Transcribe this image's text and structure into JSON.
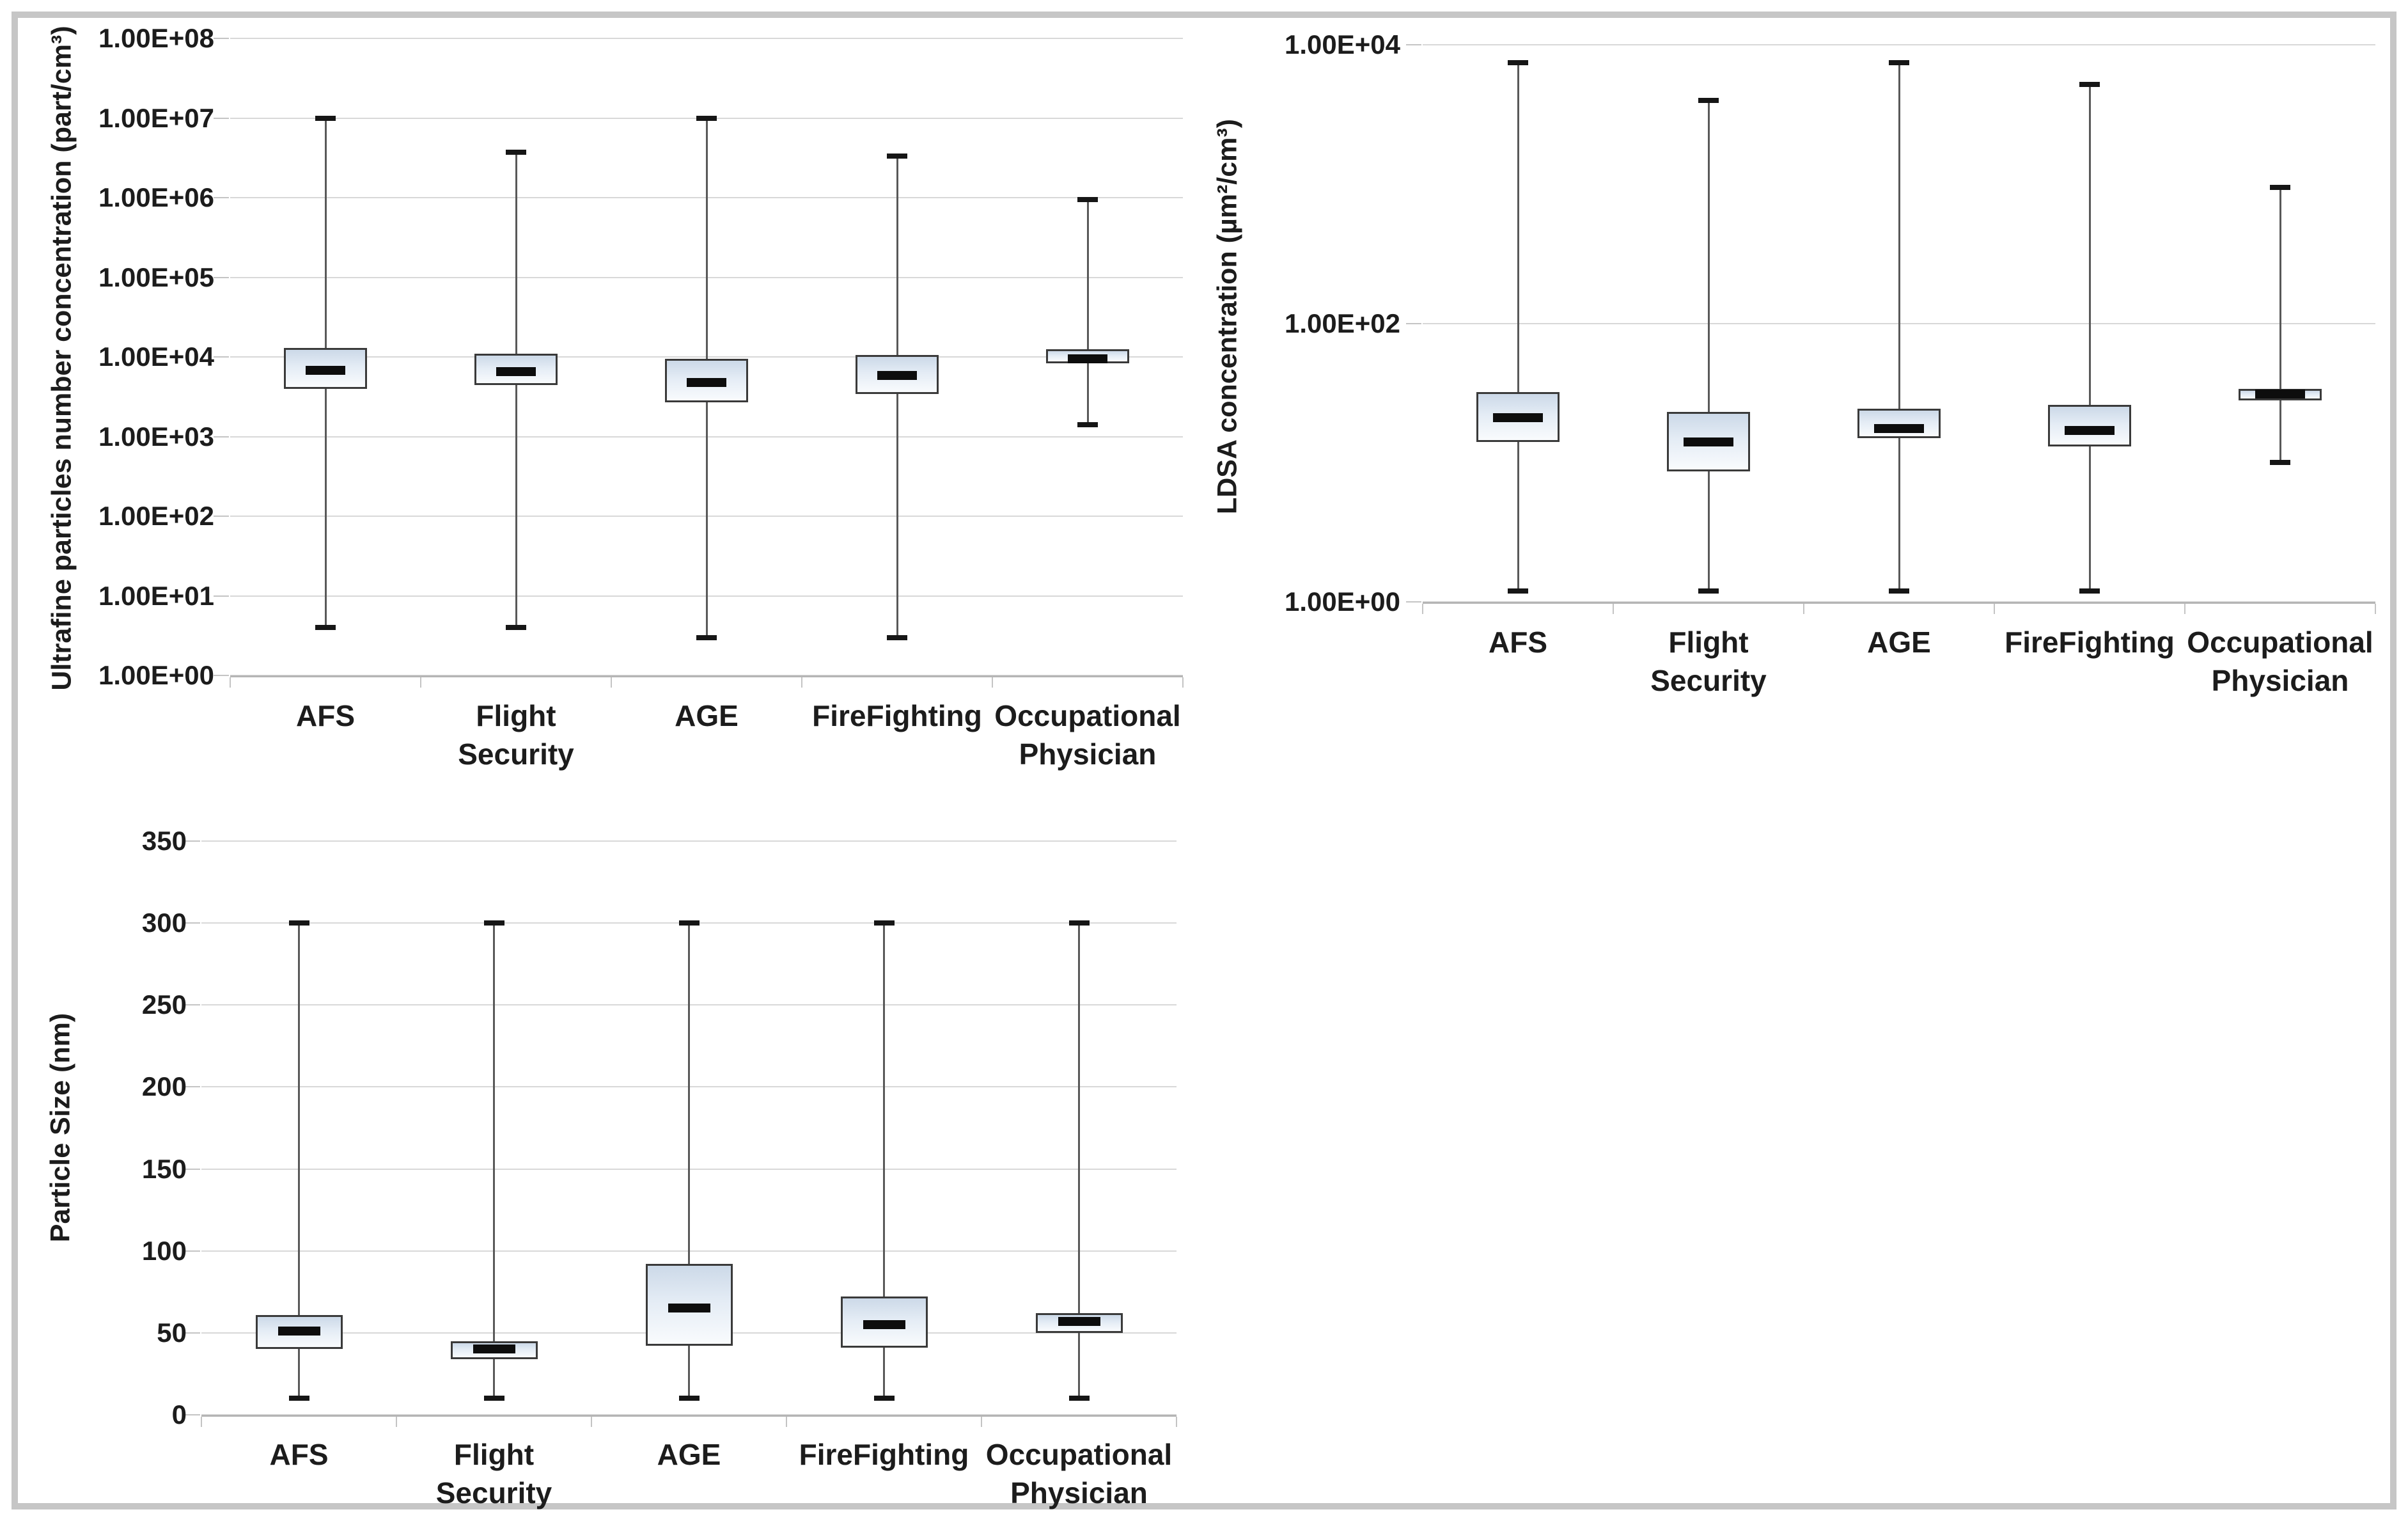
{
  "figure": {
    "description_visible_text_only": "",
    "border_color": "#c6c6c6",
    "background_color": "#ffffff",
    "box_fill_top_color": "#ccd9e8",
    "box_fill_bottom_color": "#f9fbfd",
    "box_border_color": "#3a3a3a",
    "median_color": "#0d0d0d",
    "whisker_color": "#595959",
    "gridline_color": "#d8d8d8"
  },
  "chart_data": [
    {
      "id": "ufp",
      "type": "box",
      "title": "",
      "ylabel": "Ultrafine particles number concentration (part/cm³)",
      "xlabel": "",
      "yscale": "log",
      "ylim": [
        1,
        100000000
      ],
      "grid": true,
      "legend": false,
      "yticks": [
        {
          "value": 100000000,
          "label": "1.00E+08"
        },
        {
          "value": 10000000,
          "label": "1.00E+07"
        },
        {
          "value": 1000000,
          "label": "1.00E+06"
        },
        {
          "value": 100000,
          "label": "1.00E+05"
        },
        {
          "value": 10000,
          "label": "1.00E+04"
        },
        {
          "value": 1000,
          "label": "1.00E+03"
        },
        {
          "value": 100,
          "label": "1.00E+02"
        },
        {
          "value": 10,
          "label": "1.00E+01"
        },
        {
          "value": 1,
          "label": "1.00E+00"
        }
      ],
      "categories": [
        "AFS",
        "Flight Security",
        "AGE",
        "FireFighting",
        "Occupational Physician"
      ],
      "series": [
        {
          "name": "AFS",
          "whisker_min": 4,
          "q1": 4000,
          "median": 6800,
          "q3": 13000,
          "whisker_max": 10000000
        },
        {
          "name": "Flight Security",
          "whisker_min": 4,
          "q1": 4400,
          "median": 6500,
          "q3": 11000,
          "whisker_max": 3700000
        },
        {
          "name": "AGE",
          "whisker_min": 3,
          "q1": 2700,
          "median": 4800,
          "q3": 9500,
          "whisker_max": 10000000
        },
        {
          "name": "FireFighting",
          "whisker_min": 3,
          "q1": 3400,
          "median": 5900,
          "q3": 10500,
          "whisker_max": 3300000
        },
        {
          "name": "Occupational Physician",
          "whisker_min": 1400,
          "q1": 8300,
          "median": 9500,
          "q3": 12500,
          "whisker_max": 950000
        }
      ]
    },
    {
      "id": "ldsa",
      "type": "box",
      "title": "",
      "ylabel": "LDSA concentration (µm²/cm³)",
      "xlabel": "",
      "yscale": "log",
      "ylim": [
        1,
        10000
      ],
      "grid": true,
      "legend": false,
      "yticks": [
        {
          "value": 10000,
          "label": "1.00E+04"
        },
        {
          "value": 100,
          "label": "1.00E+02"
        },
        {
          "value": 1,
          "label": "1.00E+00"
        }
      ],
      "categories": [
        "AFS",
        "Flight Security",
        "AGE",
        "FireFighting",
        "Occupational Physician"
      ],
      "series": [
        {
          "name": "AFS",
          "whisker_min": 1.2,
          "q1": 14,
          "median": 21,
          "q3": 32,
          "whisker_max": 7400
        },
        {
          "name": "Flight Security",
          "whisker_min": 1.2,
          "q1": 8.6,
          "median": 14,
          "q3": 23,
          "whisker_max": 4000
        },
        {
          "name": "AGE",
          "whisker_min": 1.2,
          "q1": 15,
          "median": 17.5,
          "q3": 24.5,
          "whisker_max": 7400
        },
        {
          "name": "FireFighting",
          "whisker_min": 1.2,
          "q1": 13,
          "median": 17,
          "q3": 26,
          "whisker_max": 5200
        },
        {
          "name": "Occupational Physician",
          "whisker_min": 10,
          "q1": 28,
          "median": 31,
          "q3": 34,
          "whisker_max": 950
        }
      ]
    },
    {
      "id": "particle",
      "type": "box",
      "title": "",
      "ylabel": "Particle Size (nm)",
      "xlabel": "",
      "yscale": "linear",
      "ylim": [
        0,
        350
      ],
      "grid": true,
      "legend": false,
      "yticks": [
        {
          "value": 350,
          "label": "350"
        },
        {
          "value": 300,
          "label": "300"
        },
        {
          "value": 250,
          "label": "250"
        },
        {
          "value": 200,
          "label": "200"
        },
        {
          "value": 150,
          "label": "150"
        },
        {
          "value": 100,
          "label": "100"
        },
        {
          "value": 50,
          "label": "50"
        },
        {
          "value": 0,
          "label": "0"
        }
      ],
      "categories": [
        "AFS",
        "Flight Security",
        "AGE",
        "FireFighting",
        "Occupational Physician"
      ],
      "series": [
        {
          "name": "AFS",
          "whisker_min": 10,
          "q1": 40,
          "median": 51,
          "q3": 61,
          "whisker_max": 300
        },
        {
          "name": "Flight Security",
          "whisker_min": 10,
          "q1": 34,
          "median": 40,
          "q3": 45,
          "whisker_max": 300
        },
        {
          "name": "AGE",
          "whisker_min": 10,
          "q1": 42,
          "median": 65,
          "q3": 92,
          "whisker_max": 300
        },
        {
          "name": "FireFighting",
          "whisker_min": 10,
          "q1": 41,
          "median": 55,
          "q3": 72,
          "whisker_max": 300
        },
        {
          "name": "Occupational Physician",
          "whisker_min": 10,
          "q1": 50,
          "median": 57,
          "q3": 62,
          "whisker_max": 300
        }
      ]
    }
  ]
}
